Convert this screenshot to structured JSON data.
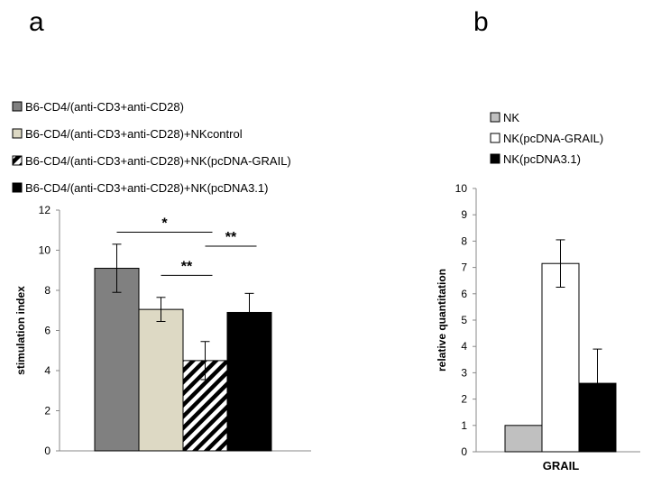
{
  "panel_labels": {
    "a": "a",
    "b": "b"
  },
  "chart_data": [
    {
      "type": "bar",
      "panel": "a",
      "title": "",
      "xlabel": "",
      "ylabel": "stimulation index",
      "ylim": [
        0,
        12
      ],
      "yticks": [
        0,
        2,
        4,
        6,
        8,
        10,
        12
      ],
      "grid": false,
      "legend_position": "top-left",
      "series": [
        {
          "name": "B6-CD4/(anti-CD3+anti-CD28)",
          "value": 9.1,
          "error": 1.2,
          "color": "#808080",
          "pattern": "solid"
        },
        {
          "name": "B6-CD4/(anti-CD3+anti-CD28)+NKcontrol",
          "value": 7.05,
          "error": 0.6,
          "color": "#ddd9c4",
          "pattern": "solid"
        },
        {
          "name": "B6-CD4/(anti-CD3+anti-CD28)+NK(pcDNA-GRAIL)",
          "value": 4.5,
          "error": 0.95,
          "color": "#000000",
          "pattern": "diagonal-hatch"
        },
        {
          "name": "B6-CD4/(anti-CD3+anti-CD28)+NK(pcDNA3.1)",
          "value": 6.9,
          "error": 0.95,
          "color": "#000000",
          "pattern": "solid"
        }
      ],
      "significance": [
        {
          "from": 0,
          "to": 2,
          "label": "*",
          "y": 10.9
        },
        {
          "from": 1,
          "to": 2,
          "label": "**",
          "y": 8.75
        },
        {
          "from": 2,
          "to": 3,
          "label": "**",
          "y": 10.2
        }
      ]
    },
    {
      "type": "bar",
      "panel": "b",
      "title": "",
      "xlabel": "GRAIL",
      "ylabel": "relative quantitation",
      "ylim": [
        0,
        10
      ],
      "yticks": [
        0,
        1,
        2,
        3,
        4,
        5,
        6,
        7,
        8,
        9,
        10
      ],
      "grid": false,
      "legend_position": "top-center",
      "series": [
        {
          "name": "NK",
          "value": 1.0,
          "error": 0,
          "color": "#c0c0c0"
        },
        {
          "name": "NK(pcDNA-GRAIL)",
          "value": 7.15,
          "error": 0.9,
          "color": "#ffffff"
        },
        {
          "name": "NK(pcDNA3.1)",
          "value": 2.6,
          "error": 1.3,
          "color": "#000000"
        }
      ]
    }
  ]
}
